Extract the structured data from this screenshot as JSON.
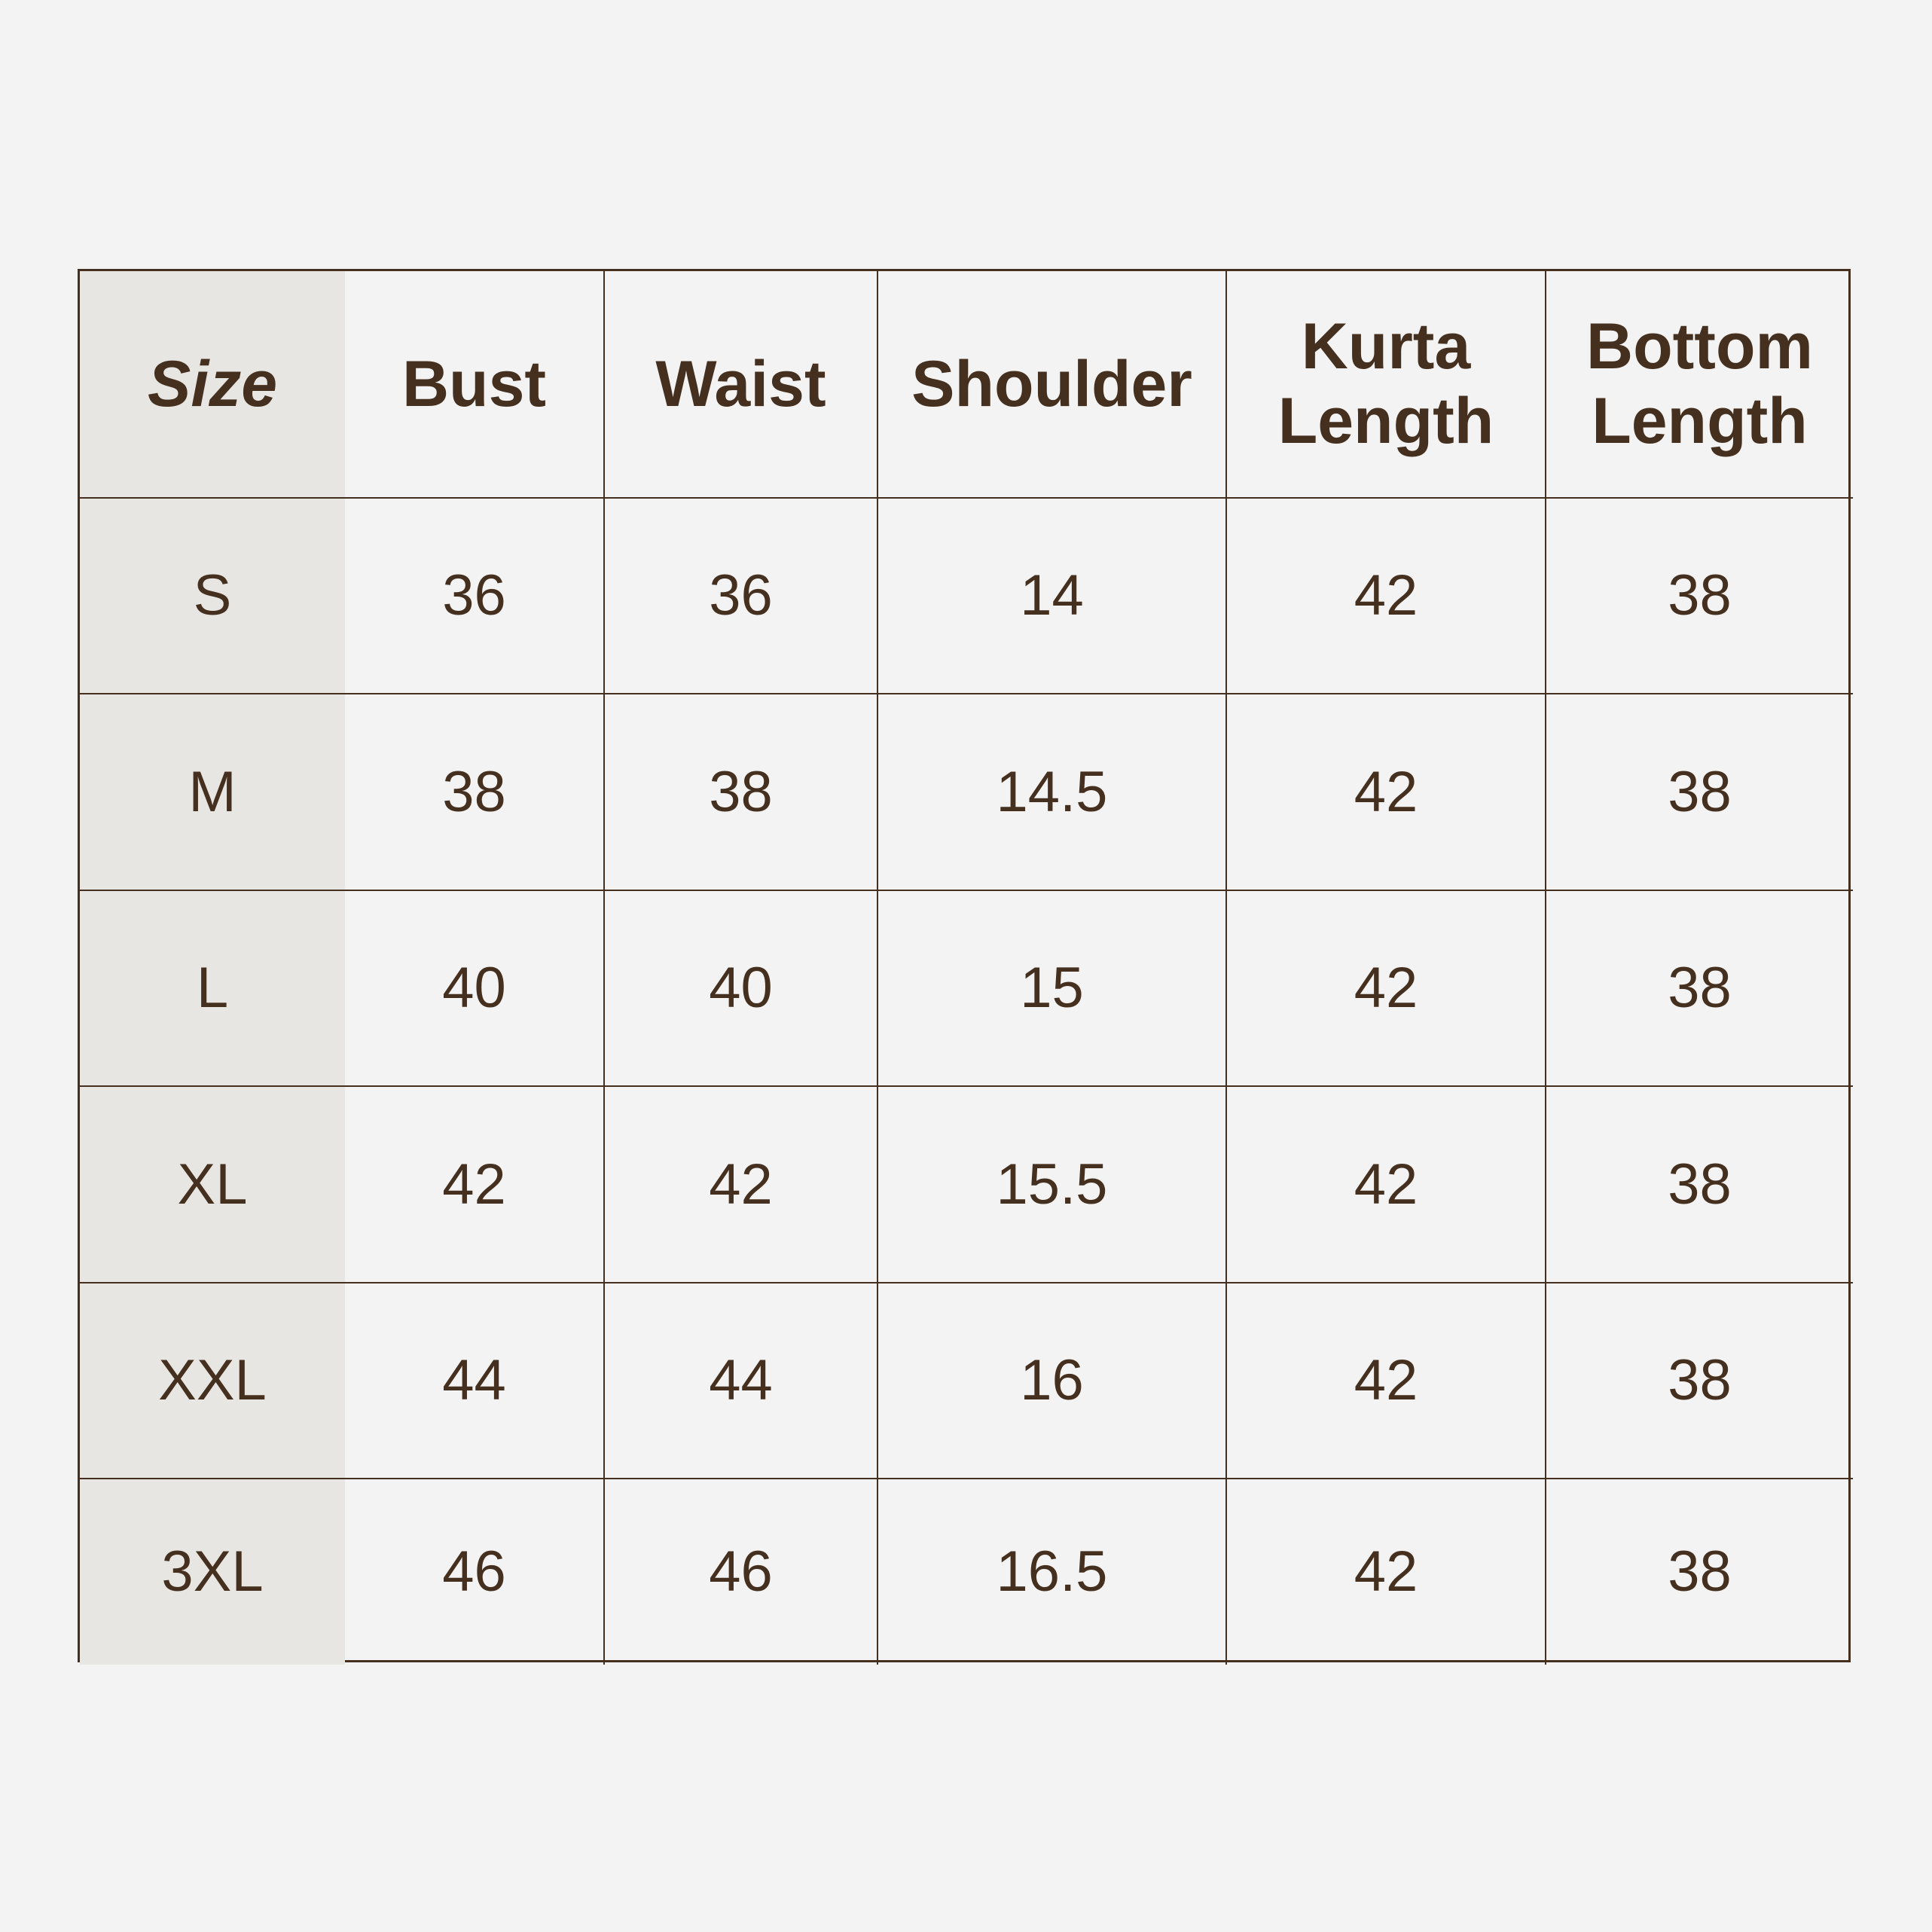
{
  "table": {
    "headers": [
      "Size",
      "Bust",
      "Waist",
      "Shoulder",
      "Kurta Length",
      "Bottom Length"
    ],
    "rows": [
      [
        "S",
        "36",
        "36",
        "14",
        "42",
        "38"
      ],
      [
        "M",
        "38",
        "38",
        "14.5",
        "42",
        "38"
      ],
      [
        "L",
        "40",
        "40",
        "15",
        "42",
        "38"
      ],
      [
        "XL",
        "42",
        "42",
        "15.5",
        "42",
        "38"
      ],
      [
        "XXL",
        "44",
        "44",
        "16",
        "42",
        "38"
      ],
      [
        "3XL",
        "46",
        "46",
        "16.5",
        "42",
        "38"
      ]
    ]
  },
  "colors": {
    "background": "#f3f3f3",
    "size_column": "#e8e6e2",
    "text_and_lines": "#45301f"
  }
}
